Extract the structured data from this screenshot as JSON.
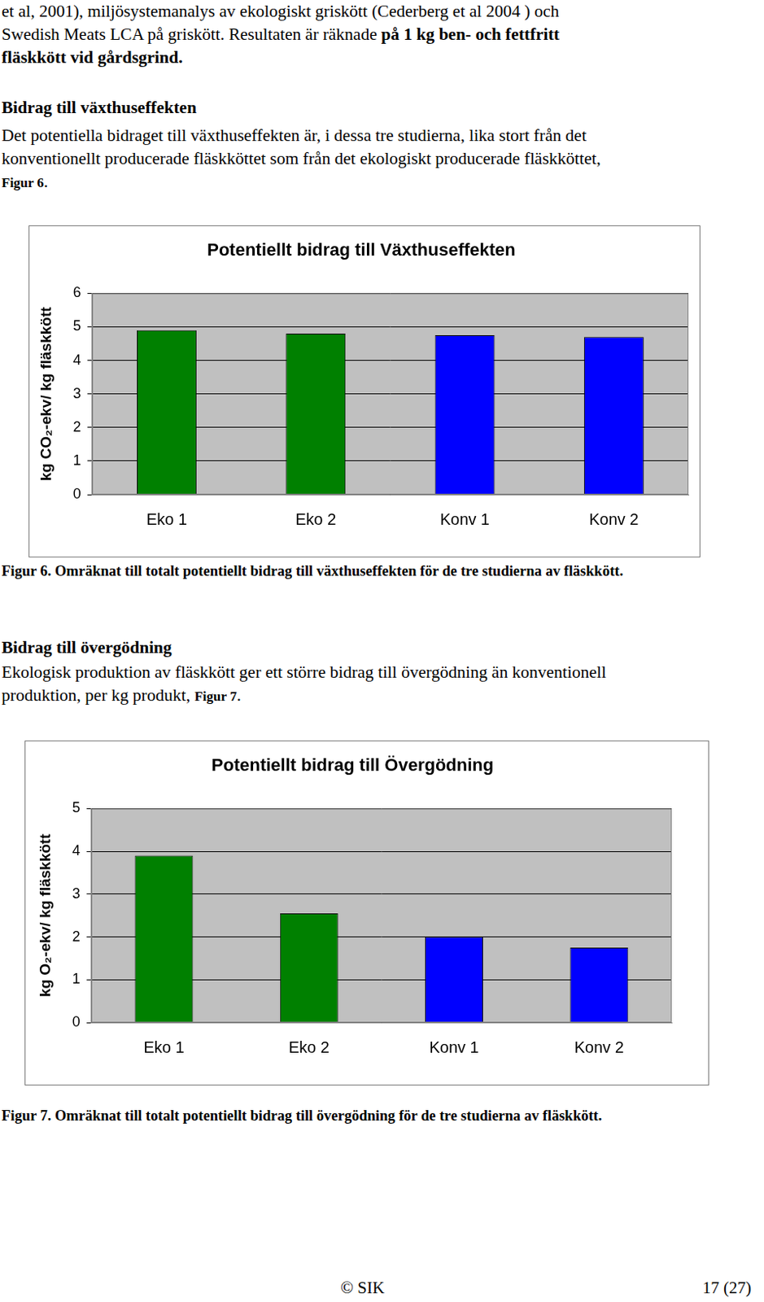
{
  "document": {
    "blocks": [
      {
        "kind": "paragraph",
        "lines": [
          [
            {
              "text": "et al, 2001), miljösystemanalys av ekologiskt griskött (Cederberg et al 2004 ) och",
              "bold": false
            }
          ],
          [
            {
              "text": "Swedish Meats LCA på griskött. Resultaten är räknade ",
              "bold": false
            },
            {
              "text": "på 1 kg ben- och fettfritt",
              "bold": true
            }
          ],
          [
            {
              "text": "fläskkött vid gårdsgrind.",
              "bold": true
            }
          ]
        ]
      },
      {
        "kind": "heading",
        "text": "Bidrag till växthuseffekten"
      },
      {
        "kind": "paragraph",
        "lines": [
          [
            {
              "text": "Det potentiella bidraget till växthuseffekten är, i dessa tre studierna, lika stort från det",
              "bold": false
            }
          ],
          [
            {
              "text": "konventionellt producerade fläskköttet som från det ekologiskt producerade fläskköttet,",
              "bold": false
            }
          ],
          [
            {
              "text": "Figur 6",
              "bold": true,
              "style": "ref"
            },
            {
              "text": ".",
              "bold": false
            }
          ]
        ]
      },
      {
        "kind": "figure",
        "chart": 0
      },
      {
        "kind": "caption",
        "text": "Figur 6. Omräknat till totalt potentiellt bidrag till växthuseffekten för de tre studierna av fläskkött."
      },
      {
        "kind": "heading",
        "text": "Bidrag till övergödning"
      },
      {
        "kind": "paragraph",
        "lines": [
          [
            {
              "text": "Ekologisk produktion av fläskkött ger ett större bidrag till övergödning än konventionell",
              "bold": false
            }
          ],
          [
            {
              "text": "produktion, per kg produkt, ",
              "bold": false
            },
            {
              "text": "Figur 7",
              "bold": true,
              "style": "ref"
            },
            {
              "text": ".",
              "bold": false
            }
          ]
        ]
      },
      {
        "kind": "figure",
        "chart": 1
      },
      {
        "kind": "caption",
        "text": "Figur 7. Omräknat till totalt potentiellt bidrag till övergödning för de tre studierna av fläskkött."
      }
    ],
    "footer": {
      "left": "© SIK",
      "right": "17 (27)"
    }
  },
  "chart_data": [
    {
      "type": "bar",
      "title": "Potentiellt bidrag till Växthuseffekten",
      "y_label": "kg CO₂-ekv/ kg fläskkött",
      "categories": [
        "Eko 1",
        "Eko 2",
        "Konv 1",
        "Konv 2"
      ],
      "values": [
        4.9,
        4.8,
        4.75,
        4.7
      ],
      "colors": [
        "#008000",
        "#008000",
        "#0000ff",
        "#0000ff"
      ],
      "ylim": [
        0,
        6
      ],
      "yticks": [
        0,
        1,
        2,
        3,
        4,
        5,
        6
      ],
      "grid": true
    },
    {
      "type": "bar",
      "title": "Potentiellt bidrag till Övergödning",
      "y_label": "kg O₂-ekv/ kg fläskkött",
      "categories": [
        "Eko 1",
        "Eko 2",
        "Konv 1",
        "Konv 2"
      ],
      "values": [
        3.9,
        2.55,
        2.0,
        1.75
      ],
      "colors": [
        "#008000",
        "#008000",
        "#0000ff",
        "#0000ff"
      ],
      "ylim": [
        0,
        5
      ],
      "yticks": [
        0,
        1,
        2,
        3,
        4,
        5
      ],
      "grid": true
    }
  ]
}
